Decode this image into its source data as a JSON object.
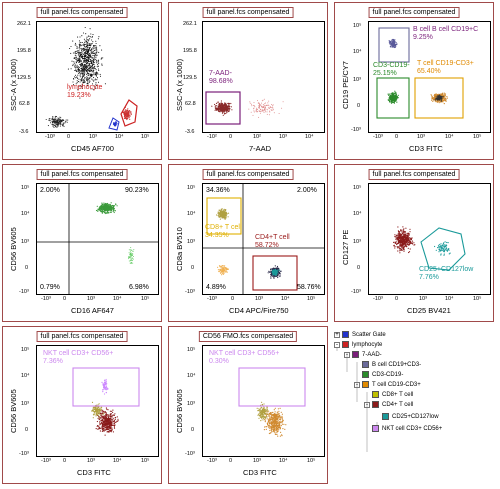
{
  "panel_title": "full panel.fcs compensated",
  "panels": [
    {
      "id": "p1",
      "title": "full panel.fcs compensated",
      "xlabel": "CD45 AF700",
      "ylabel": "SSC-A (x 1000)",
      "xticks": [
        "-10³",
        "0",
        "10³",
        "10⁴",
        "10⁵"
      ],
      "yticks": [
        "262.1",
        "195.8",
        "129.5",
        "62.8",
        "-3.6"
      ],
      "gates": [
        {
          "label": "lymphocyte",
          "value": "19.23%",
          "color": "#cc2222"
        }
      ]
    },
    {
      "id": "p2",
      "title": "full panel.fcs compensated",
      "xlabel": "7-AAD",
      "ylabel": "SSC-A (x 1000)",
      "xticks": [
        "-10²",
        "0",
        "10²",
        "10³",
        "10⁴"
      ],
      "yticks": [
        "262.1",
        "195.8",
        "129.5",
        "62.8",
        "-3.6"
      ],
      "gates": [
        {
          "label": "7-AAD-",
          "value": "98.68%",
          "color": "#7a1f7a"
        }
      ]
    },
    {
      "id": "p3",
      "title": "full panel.fcs compensated",
      "xlabel": "CD3 FITC",
      "ylabel": "CD19 PE/CY7",
      "xticks": [
        "-10³",
        "0",
        "10³",
        "10⁴",
        "10⁵"
      ],
      "yticks": [
        "10⁵",
        "10⁴",
        "10³",
        "0",
        "-10³"
      ],
      "gates": [
        {
          "label": "B cell B cell CD19+C",
          "value": "9.25%",
          "color": "#7a1f7a"
        },
        {
          "label": "CD3-CD19-",
          "value": "25.15%",
          "color": "#2a8a2a"
        },
        {
          "label": "T cell CD19-CD3+",
          "value": "65.40%",
          "color": "#e08a00"
        }
      ]
    },
    {
      "id": "p4",
      "title": "full panel.fcs compensated",
      "xlabel": "CD16 AF647",
      "ylabel": "CD56 BV605",
      "xticks": [
        "-10³",
        "0",
        "10³",
        "10⁴",
        "10⁵"
      ],
      "yticks": [
        "10⁵",
        "10⁴",
        "10³",
        "0",
        "-10³"
      ],
      "quadrants": [
        "2.00%",
        "90.23%",
        "0.79%",
        "6.98%"
      ]
    },
    {
      "id": "p5",
      "title": "full panel.fcs compensated",
      "xlabel": "CD4 APC/Fire750",
      "ylabel": "CD8a BV510",
      "xticks": [
        "-10³",
        "0",
        "10³",
        "10⁴",
        "10⁵"
      ],
      "yticks": [
        "10⁵",
        "10⁴",
        "10³",
        "0",
        "-10³"
      ],
      "quadrants": [
        "34.36%",
        "2.00%",
        "4.89%",
        "58.76%"
      ],
      "gates": [
        {
          "label": "CD8+ T cell",
          "value": "34.35%",
          "color": "#e0b000"
        },
        {
          "label": "CD4+T cell",
          "value": "58.72%",
          "color": "#9a1a1a"
        }
      ]
    },
    {
      "id": "p6",
      "title": "full panel.fcs compensated",
      "xlabel": "CD25 BV421",
      "ylabel": "CD127 PE",
      "xticks": [
        "-10³",
        "0",
        "10³",
        "10⁴",
        "10⁵"
      ],
      "yticks": [
        "10⁵",
        "10⁴",
        "10³",
        "0",
        "-10³"
      ],
      "gates": [
        {
          "label": "CD25+CD127low",
          "value": "7.76%",
          "color": "#1a9a9a"
        }
      ]
    },
    {
      "id": "p7",
      "title": "full panel.fcs compensated",
      "xlabel": "CD3 FITC",
      "ylabel": "CD56 BV605",
      "xticks": [
        "-10³",
        "0",
        "10³",
        "10⁴",
        "10⁵"
      ],
      "yticks": [
        "10⁵",
        "10⁴",
        "10³",
        "0",
        "-10³"
      ],
      "gates": [
        {
          "label": "NKT cell CD3+ CD56+",
          "value": "7.36%",
          "color": "#cc88ee"
        }
      ]
    },
    {
      "id": "p8",
      "title": "CD56 FMO.fcs compensated",
      "xlabel": "CD3 FITC",
      "ylabel": "CD56 BV605",
      "xticks": [
        "-10³",
        "0",
        "10³",
        "10⁴",
        "10⁵"
      ],
      "yticks": [
        "10⁵",
        "10⁴",
        "10³",
        "0",
        "-10³"
      ],
      "gates": [
        {
          "label": "NKT cell CD3+ CD56+",
          "value": "0.30%",
          "color": "#cc88ee"
        }
      ]
    }
  ],
  "hierarchy": [
    {
      "label": "Scatter Gate",
      "color": "#2233cc",
      "level": 0,
      "expander": "+"
    },
    {
      "label": "lymphocyte",
      "color": "#cc2222",
      "level": 0,
      "expander": "-"
    },
    {
      "label": "7-AAD-",
      "color": "#7a1f7a",
      "level": 1,
      "expander": "-"
    },
    {
      "label": "B cell CD19+CD3-",
      "color": "#6a6a9a",
      "level": 2,
      "expander": ""
    },
    {
      "label": "CD3-CD19-",
      "color": "#2a8a2a",
      "level": 2,
      "expander": ""
    },
    {
      "label": "T cell CD19-CD3+",
      "color": "#e08a00",
      "level": 2,
      "expander": "-"
    },
    {
      "label": "CD8+ T cell",
      "color": "#c0c000",
      "level": 3,
      "expander": ""
    },
    {
      "label": "CD4+ T cell",
      "color": "#8a1a1a",
      "level": 3,
      "expander": "-"
    },
    {
      "label": "CD25+CD127low",
      "color": "#1a9a9a",
      "level": 4,
      "expander": ""
    },
    {
      "label": "NKT cell CD3+ CD56+",
      "color": "#cc88ee",
      "level": 3,
      "expander": ""
    }
  ]
}
